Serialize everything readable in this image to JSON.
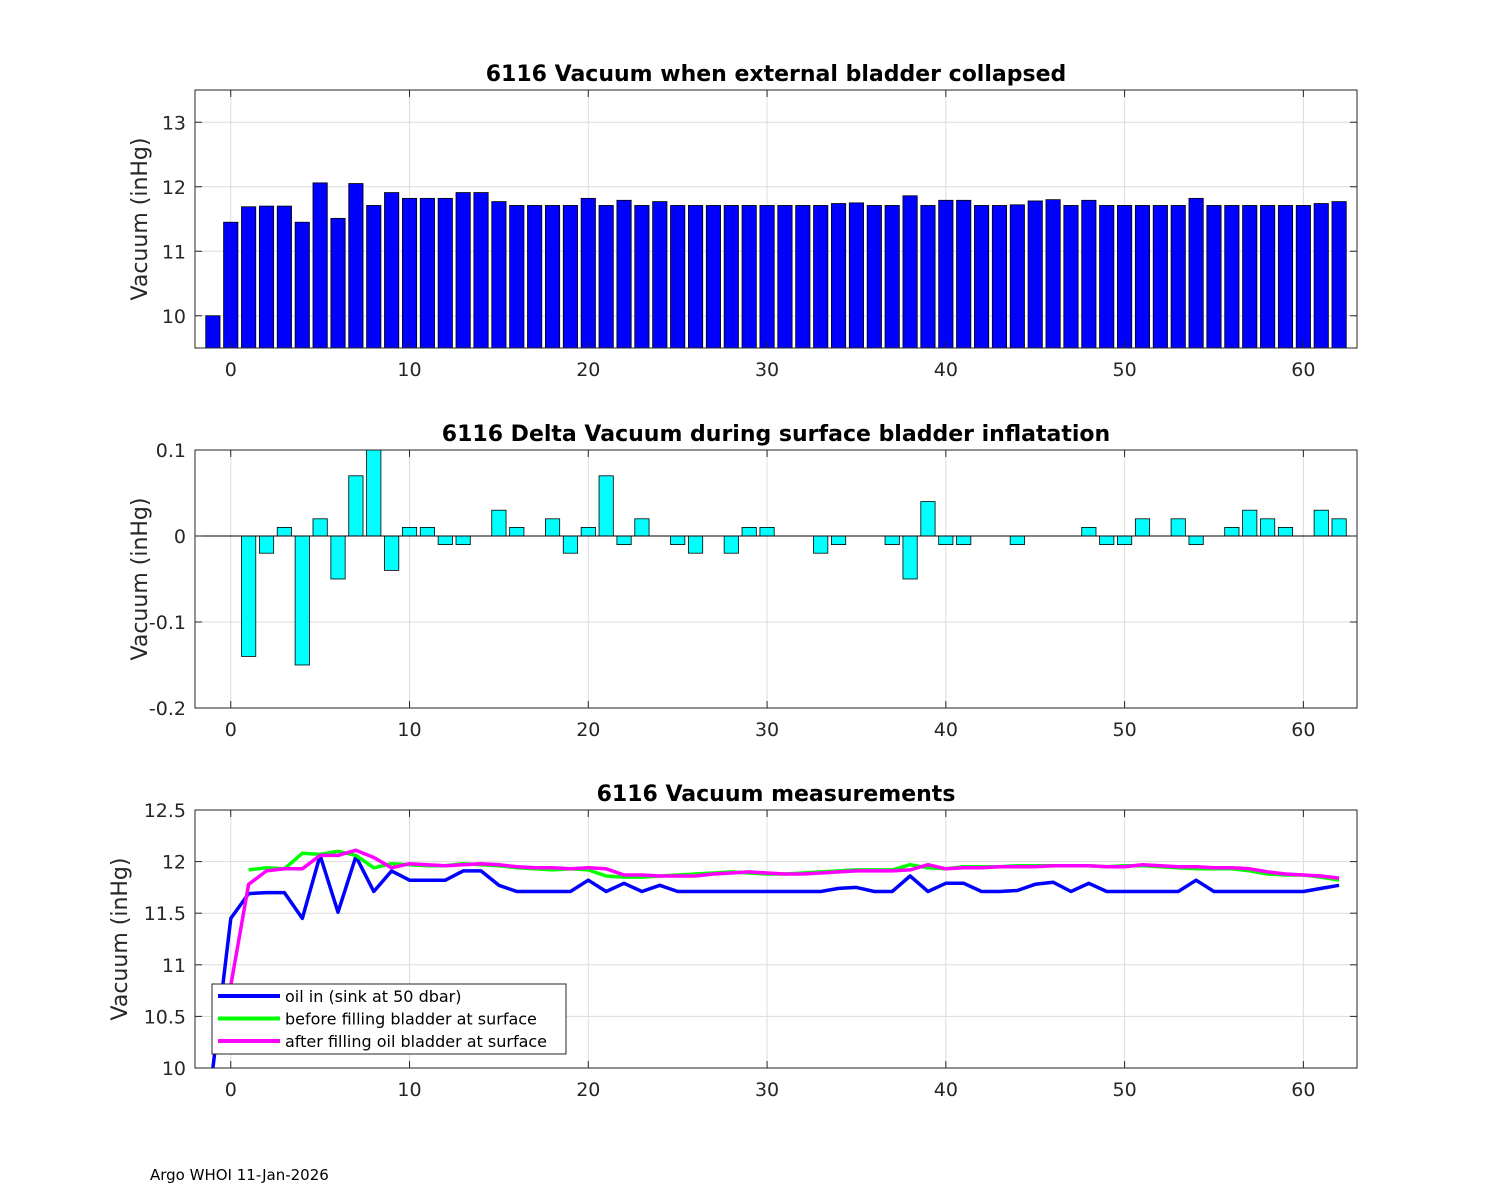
{
  "footer": "Argo WHOI 11-Jan-2026",
  "chart_data": [
    {
      "type": "bar",
      "title": "6116 Vacuum when external bladder collapsed",
      "ylabel": "Vacuum (inHg)",
      "xlabel": "",
      "color": "#0000ff",
      "xlim": [
        -2,
        63
      ],
      "ylim": [
        9.5,
        13.5
      ],
      "baseline": 9.5,
      "xticks": [
        0,
        10,
        20,
        30,
        40,
        50,
        60
      ],
      "yticks": [
        10,
        11,
        12,
        13
      ],
      "ytick_labels": [
        "10",
        "11",
        "12",
        "13"
      ],
      "x": [
        -1,
        0,
        1,
        2,
        3,
        4,
        5,
        6,
        7,
        8,
        9,
        10,
        11,
        12,
        13,
        14,
        15,
        16,
        17,
        18,
        19,
        20,
        21,
        22,
        23,
        24,
        25,
        26,
        27,
        28,
        29,
        30,
        31,
        32,
        33,
        34,
        35,
        36,
        37,
        38,
        39,
        40,
        41,
        42,
        43,
        44,
        45,
        46,
        47,
        48,
        49,
        50,
        51,
        52,
        53,
        54,
        55,
        56,
        57,
        58,
        59,
        60,
        61,
        62
      ],
      "values": [
        10.0,
        11.45,
        11.69,
        11.7,
        11.7,
        11.45,
        12.06,
        11.51,
        12.05,
        11.71,
        11.91,
        11.82,
        11.82,
        11.82,
        11.91,
        11.91,
        11.77,
        11.71,
        11.71,
        11.71,
        11.71,
        11.82,
        11.71,
        11.79,
        11.71,
        11.77,
        11.71,
        11.71,
        11.71,
        11.71,
        11.71,
        11.71,
        11.71,
        11.71,
        11.71,
        11.74,
        11.75,
        11.71,
        11.71,
        11.86,
        11.71,
        11.79,
        11.79,
        11.71,
        11.71,
        11.72,
        11.78,
        11.8,
        11.71,
        11.79,
        11.71,
        11.71,
        11.71,
        11.71,
        11.71,
        11.82,
        11.71,
        11.71,
        11.71,
        11.71,
        11.71,
        11.71,
        11.74,
        11.77
      ]
    },
    {
      "type": "bar",
      "title": "6116 Delta Vacuum during surface bladder inflatation",
      "ylabel": "Vacuum (inHg)",
      "xlabel": "",
      "color": "#00ffff",
      "xlim": [
        -2,
        63
      ],
      "ylim": [
        -0.2,
        0.1
      ],
      "baseline": 0,
      "xticks": [
        0,
        10,
        20,
        30,
        40,
        50,
        60
      ],
      "yticks": [
        -0.2,
        -0.1,
        0,
        0.1
      ],
      "ytick_labels": [
        "-0.2",
        "-0.1",
        "0",
        "0.1"
      ],
      "x": [
        1,
        2,
        3,
        4,
        5,
        6,
        7,
        8,
        9,
        10,
        11,
        12,
        13,
        15,
        16,
        18,
        19,
        20,
        21,
        22,
        23,
        25,
        26,
        28,
        29,
        30,
        33,
        34,
        37,
        38,
        39,
        40,
        41,
        44,
        48,
        49,
        50,
        51,
        53,
        54,
        56,
        57,
        58,
        59,
        61,
        62
      ],
      "values": [
        -0.14,
        -0.02,
        0.01,
        -0.15,
        0.02,
        -0.05,
        0.07,
        0.1,
        -0.04,
        0.01,
        0.01,
        -0.01,
        -0.01,
        0.03,
        0.01,
        0.02,
        -0.02,
        0.01,
        0.07,
        -0.01,
        0.02,
        -0.01,
        -0.02,
        -0.02,
        0.01,
        0.01,
        -0.02,
        -0.01,
        -0.01,
        -0.05,
        0.04,
        -0.01,
        -0.01,
        -0.01,
        0.01,
        -0.01,
        -0.01,
        0.02,
        0.02,
        -0.01,
        0.01,
        0.03,
        0.02,
        0.01,
        0.03,
        0.02
      ]
    },
    {
      "type": "line",
      "title": "6116 Vacuum measurements",
      "ylabel": "Vacuum (inHg)",
      "xlabel": "",
      "xlim": [
        -2,
        63
      ],
      "ylim": [
        10,
        12.5
      ],
      "xticks": [
        0,
        10,
        20,
        30,
        40,
        50,
        60
      ],
      "yticks": [
        10,
        10.5,
        11,
        11.5,
        12,
        12.5
      ],
      "ytick_labels": [
        "10",
        "10.5",
        "11",
        "11.5",
        "12",
        "12.5"
      ],
      "legend_position": "bottom-left",
      "series": [
        {
          "name": "oil in (sink at 50 dbar)",
          "color": "#0000ff",
          "x": [
            -1,
            0,
            1,
            2,
            3,
            4,
            5,
            6,
            7,
            8,
            9,
            10,
            11,
            12,
            13,
            14,
            15,
            16,
            17,
            18,
            19,
            20,
            21,
            22,
            23,
            24,
            25,
            26,
            27,
            28,
            29,
            30,
            31,
            32,
            33,
            34,
            35,
            36,
            37,
            38,
            39,
            40,
            41,
            42,
            43,
            44,
            45,
            46,
            47,
            48,
            49,
            50,
            51,
            52,
            53,
            54,
            55,
            56,
            57,
            58,
            59,
            60,
            61,
            62
          ],
          "values": [
            10.0,
            11.45,
            11.69,
            11.7,
            11.7,
            11.45,
            12.06,
            11.51,
            12.05,
            11.71,
            11.91,
            11.82,
            11.82,
            11.82,
            11.91,
            11.91,
            11.77,
            11.71,
            11.71,
            11.71,
            11.71,
            11.82,
            11.71,
            11.79,
            11.71,
            11.77,
            11.71,
            11.71,
            11.71,
            11.71,
            11.71,
            11.71,
            11.71,
            11.71,
            11.71,
            11.74,
            11.75,
            11.71,
            11.71,
            11.86,
            11.71,
            11.79,
            11.79,
            11.71,
            11.71,
            11.72,
            11.78,
            11.8,
            11.71,
            11.79,
            11.71,
            11.71,
            11.71,
            11.71,
            11.71,
            11.82,
            11.71,
            11.71,
            11.71,
            11.71,
            11.71,
            11.71,
            11.74,
            11.77
          ]
        },
        {
          "name": "before filling bladder at surface",
          "color": "#00ff00",
          "x": [
            1,
            2,
            3,
            4,
            5,
            6,
            7,
            8,
            9,
            10,
            11,
            12,
            13,
            14,
            15,
            16,
            17,
            18,
            19,
            20,
            21,
            22,
            23,
            24,
            25,
            26,
            27,
            28,
            29,
            30,
            31,
            32,
            33,
            34,
            35,
            36,
            37,
            38,
            39,
            40,
            41,
            42,
            43,
            44,
            45,
            46,
            47,
            48,
            49,
            50,
            51,
            52,
            53,
            54,
            55,
            56,
            57,
            58,
            59,
            60,
            61,
            62
          ],
          "values": [
            11.92,
            11.94,
            11.93,
            12.08,
            12.07,
            12.1,
            12.06,
            11.94,
            11.98,
            11.97,
            11.96,
            11.96,
            11.98,
            11.97,
            11.96,
            11.94,
            11.93,
            11.92,
            11.93,
            11.92,
            11.86,
            11.85,
            11.85,
            11.86,
            11.87,
            11.88,
            11.89,
            11.9,
            11.89,
            11.88,
            11.88,
            11.89,
            11.9,
            11.91,
            11.92,
            11.92,
            11.92,
            11.97,
            11.94,
            11.93,
            11.95,
            11.95,
            11.95,
            11.96,
            11.96,
            11.96,
            11.96,
            11.96,
            11.95,
            11.96,
            11.96,
            11.95,
            11.94,
            11.93,
            11.93,
            11.93,
            11.91,
            11.88,
            11.87,
            11.87,
            11.85,
            11.82
          ]
        },
        {
          "name": "after filling oil bladder at surface",
          "color": "#ff00ff",
          "x": [
            0,
            1,
            2,
            3,
            4,
            5,
            6,
            7,
            8,
            9,
            10,
            11,
            12,
            13,
            14,
            15,
            16,
            17,
            18,
            19,
            20,
            21,
            22,
            23,
            24,
            25,
            26,
            27,
            28,
            29,
            30,
            31,
            32,
            33,
            34,
            35,
            36,
            37,
            38,
            39,
            40,
            41,
            42,
            43,
            44,
            45,
            46,
            47,
            48,
            49,
            50,
            51,
            52,
            53,
            54,
            55,
            56,
            57,
            58,
            59,
            60,
            61,
            62
          ],
          "values": [
            10.8,
            11.78,
            11.91,
            11.93,
            11.93,
            12.06,
            12.06,
            12.11,
            12.04,
            11.94,
            11.98,
            11.97,
            11.96,
            11.97,
            11.98,
            11.97,
            11.95,
            11.94,
            11.94,
            11.93,
            11.94,
            11.93,
            11.87,
            11.87,
            11.86,
            11.86,
            11.86,
            11.88,
            11.89,
            11.9,
            11.89,
            11.88,
            11.88,
            11.89,
            11.9,
            11.91,
            11.91,
            11.91,
            11.92,
            11.97,
            11.93,
            11.94,
            11.94,
            11.95,
            11.95,
            11.95,
            11.96,
            11.96,
            11.96,
            11.95,
            11.95,
            11.97,
            11.96,
            11.95,
            11.95,
            11.94,
            11.94,
            11.93,
            11.9,
            11.88,
            11.87,
            11.86,
            11.84
          ]
        }
      ]
    }
  ]
}
